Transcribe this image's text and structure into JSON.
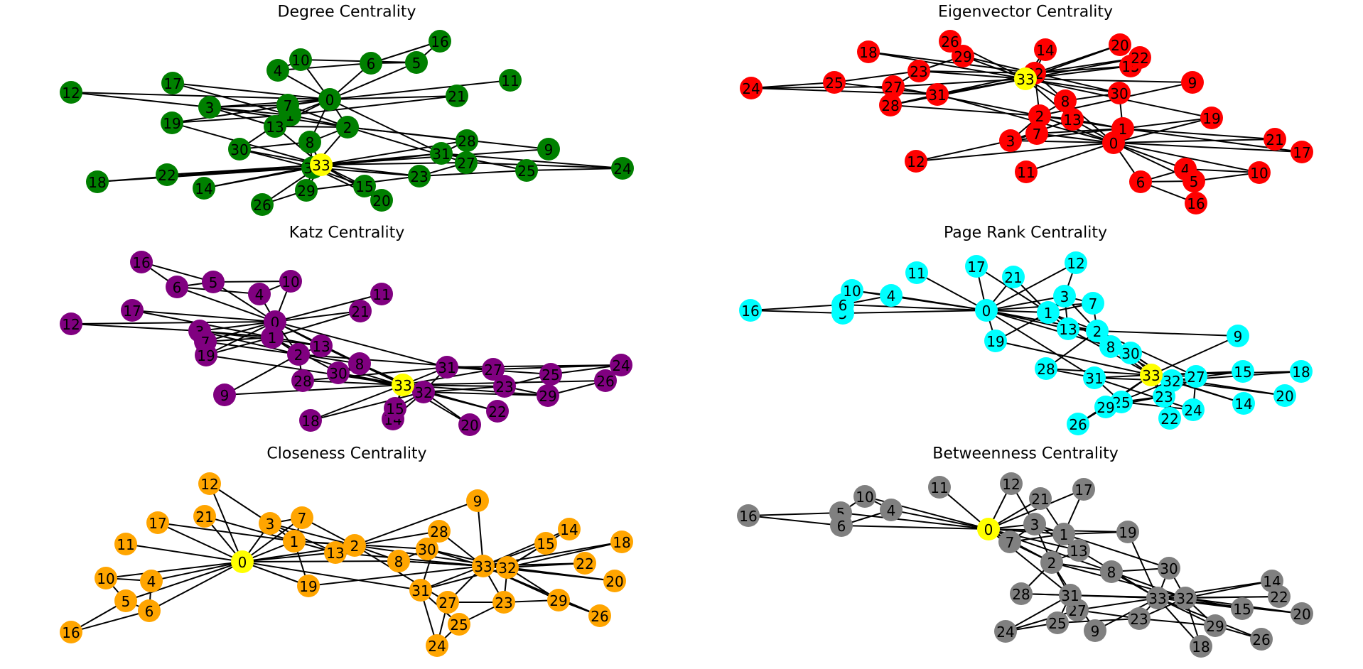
{
  "figure": {
    "highlight_color": "#ffff00",
    "edge_color": "#000000"
  },
  "panels": [
    {
      "title": "Degree Centrality",
      "node_color": "#008000",
      "highlighted_node": "33",
      "nodes": [
        "0",
        "1",
        "2",
        "3",
        "4",
        "5",
        "6",
        "7",
        "8",
        "9",
        "10",
        "11",
        "12",
        "13",
        "14",
        "15",
        "16",
        "17",
        "18",
        "19",
        "20",
        "21",
        "22",
        "23",
        "24",
        "25",
        "26",
        "27",
        "28",
        "29",
        "30",
        "31",
        "32",
        "33"
      ]
    },
    {
      "title": "Eigenvector Centrality",
      "node_color": "#ff0000",
      "highlighted_node": "33",
      "nodes": [
        "0",
        "1",
        "2",
        "3",
        "4",
        "5",
        "6",
        "7",
        "8",
        "9",
        "10",
        "11",
        "12",
        "13",
        "14",
        "15",
        "16",
        "17",
        "18",
        "19",
        "20",
        "21",
        "22",
        "23",
        "24",
        "25",
        "26",
        "27",
        "28",
        "29",
        "30",
        "31",
        "32",
        "33"
      ]
    },
    {
      "title": "Katz Centrality",
      "node_color": "#800080",
      "highlighted_node": "33",
      "nodes": [
        "0",
        "1",
        "2",
        "3",
        "4",
        "5",
        "6",
        "7",
        "8",
        "9",
        "10",
        "11",
        "12",
        "13",
        "14",
        "15",
        "16",
        "17",
        "18",
        "19",
        "20",
        "21",
        "22",
        "23",
        "24",
        "25",
        "26",
        "27",
        "28",
        "29",
        "30",
        "31",
        "32",
        "33"
      ]
    },
    {
      "title": "Page Rank Centrality",
      "node_color": "#00ffff",
      "highlighted_node": "33",
      "nodes": [
        "0",
        "1",
        "2",
        "3",
        "4",
        "5",
        "6",
        "7",
        "8",
        "9",
        "10",
        "11",
        "12",
        "13",
        "14",
        "15",
        "16",
        "17",
        "18",
        "19",
        "20",
        "21",
        "22",
        "23",
        "24",
        "25",
        "26",
        "27",
        "28",
        "29",
        "30",
        "31",
        "32",
        "33"
      ]
    },
    {
      "title": "Closeness Centrality",
      "node_color": "#ffa500",
      "highlighted_node": "0",
      "nodes": [
        "0",
        "1",
        "2",
        "3",
        "4",
        "5",
        "6",
        "7",
        "8",
        "9",
        "10",
        "11",
        "12",
        "13",
        "14",
        "15",
        "16",
        "17",
        "18",
        "19",
        "20",
        "21",
        "22",
        "23",
        "24",
        "25",
        "26",
        "27",
        "28",
        "29",
        "30",
        "31",
        "32",
        "33"
      ]
    },
    {
      "title": "Betweenness Centrality",
      "node_color": "#808080",
      "highlighted_node": "0",
      "nodes": [
        "0",
        "1",
        "2",
        "3",
        "4",
        "5",
        "6",
        "7",
        "8",
        "9",
        "10",
        "11",
        "12",
        "13",
        "14",
        "15",
        "16",
        "17",
        "18",
        "19",
        "20",
        "21",
        "22",
        "23",
        "24",
        "25",
        "26",
        "27",
        "28",
        "29",
        "30",
        "31",
        "32",
        "33"
      ]
    }
  ],
  "edges": [
    [
      "0",
      "1"
    ],
    [
      "0",
      "2"
    ],
    [
      "0",
      "3"
    ],
    [
      "0",
      "4"
    ],
    [
      "0",
      "5"
    ],
    [
      "0",
      "6"
    ],
    [
      "0",
      "7"
    ],
    [
      "0",
      "8"
    ],
    [
      "0",
      "10"
    ],
    [
      "0",
      "11"
    ],
    [
      "0",
      "12"
    ],
    [
      "0",
      "13"
    ],
    [
      "0",
      "17"
    ],
    [
      "0",
      "19"
    ],
    [
      "0",
      "21"
    ],
    [
      "0",
      "31"
    ],
    [
      "1",
      "2"
    ],
    [
      "1",
      "3"
    ],
    [
      "1",
      "7"
    ],
    [
      "1",
      "13"
    ],
    [
      "1",
      "17"
    ],
    [
      "1",
      "19"
    ],
    [
      "1",
      "21"
    ],
    [
      "1",
      "30"
    ],
    [
      "2",
      "3"
    ],
    [
      "2",
      "7"
    ],
    [
      "2",
      "8"
    ],
    [
      "2",
      "9"
    ],
    [
      "2",
      "13"
    ],
    [
      "2",
      "27"
    ],
    [
      "2",
      "28"
    ],
    [
      "2",
      "32"
    ],
    [
      "3",
      "7"
    ],
    [
      "3",
      "12"
    ],
    [
      "3",
      "13"
    ],
    [
      "4",
      "6"
    ],
    [
      "4",
      "10"
    ],
    [
      "5",
      "6"
    ],
    [
      "5",
      "10"
    ],
    [
      "5",
      "16"
    ],
    [
      "6",
      "16"
    ],
    [
      "8",
      "30"
    ],
    [
      "8",
      "32"
    ],
    [
      "8",
      "33"
    ],
    [
      "9",
      "33"
    ],
    [
      "13",
      "33"
    ],
    [
      "14",
      "32"
    ],
    [
      "14",
      "33"
    ],
    [
      "15",
      "32"
    ],
    [
      "15",
      "33"
    ],
    [
      "18",
      "32"
    ],
    [
      "18",
      "33"
    ],
    [
      "19",
      "33"
    ],
    [
      "20",
      "32"
    ],
    [
      "20",
      "33"
    ],
    [
      "22",
      "32"
    ],
    [
      "22",
      "33"
    ],
    [
      "23",
      "25"
    ],
    [
      "23",
      "27"
    ],
    [
      "23",
      "29"
    ],
    [
      "23",
      "32"
    ],
    [
      "23",
      "33"
    ],
    [
      "24",
      "25"
    ],
    [
      "24",
      "27"
    ],
    [
      "24",
      "31"
    ],
    [
      "25",
      "31"
    ],
    [
      "26",
      "29"
    ],
    [
      "26",
      "33"
    ],
    [
      "27",
      "33"
    ],
    [
      "28",
      "31"
    ],
    [
      "28",
      "33"
    ],
    [
      "29",
      "32"
    ],
    [
      "29",
      "33"
    ],
    [
      "30",
      "32"
    ],
    [
      "30",
      "33"
    ],
    [
      "31",
      "32"
    ],
    [
      "31",
      "33"
    ],
    [
      "32",
      "33"
    ]
  ]
}
